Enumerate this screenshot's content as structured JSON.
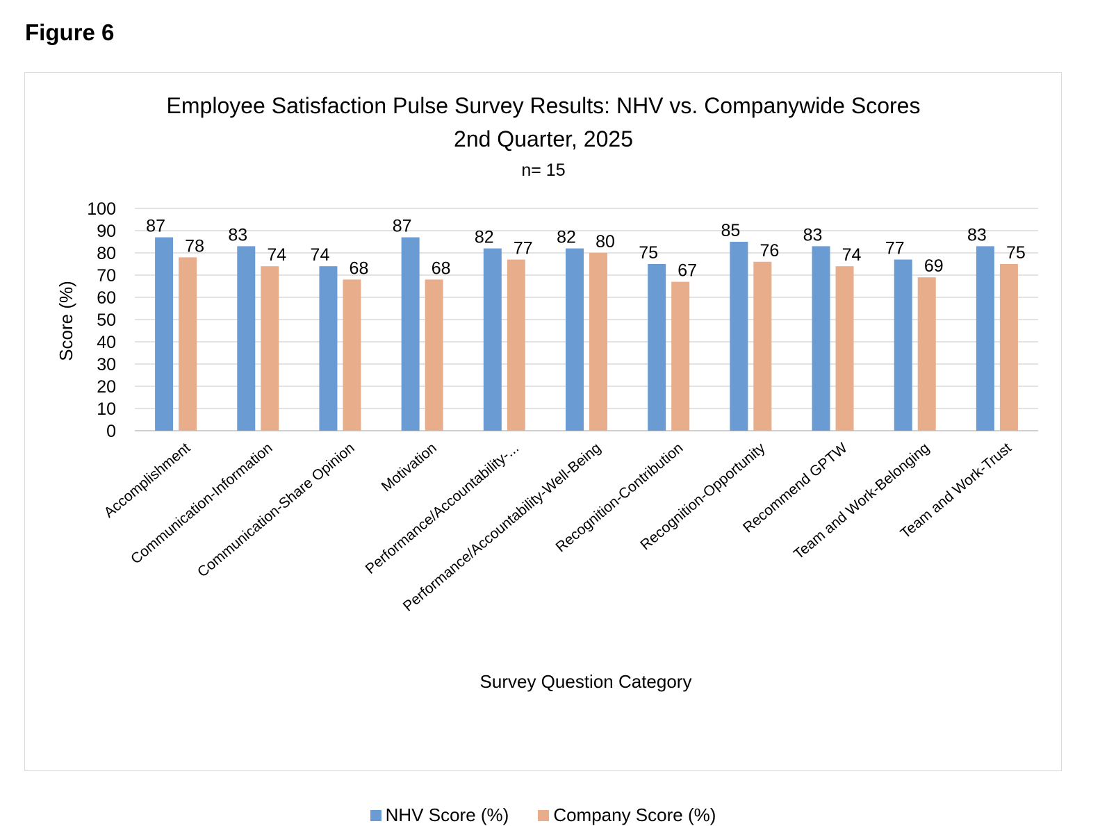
{
  "figure_label": "Figure 6",
  "chart_data": {
    "type": "bar",
    "title": "Employee Satisfaction Pulse Survey Results: NHV vs. Companywide Scores",
    "subtitle": "2nd Quarter, 2025",
    "note": "n= 15",
    "xlabel": "Survey Question Category",
    "ylabel": "Score (%)",
    "ylim": [
      0,
      100
    ],
    "yticks": [
      0,
      10,
      20,
      30,
      40,
      50,
      60,
      70,
      80,
      90,
      100
    ],
    "grid": true,
    "legend_position": "bottom",
    "categories": [
      "Accomplishment",
      "Communication-Information",
      "Communication-Share Opinion",
      "Motivation",
      "Performance/Accountability-...",
      "Performance/Accountability-Well-Being",
      "Recognition-Contribution",
      "Recognition-Opportunity",
      "Recommend GPTW",
      "Team and Work-Belonging",
      "Team and Work-Trust"
    ],
    "series": [
      {
        "name": "NHV Score (%)",
        "color": "#6a9bd2",
        "values": [
          87,
          83,
          74,
          87,
          82,
          82,
          75,
          85,
          83,
          77,
          83
        ]
      },
      {
        "name": "Company Score (%)",
        "color": "#e8ad8a",
        "values": [
          78,
          74,
          68,
          68,
          77,
          80,
          67,
          76,
          74,
          69,
          75
        ]
      }
    ]
  }
}
